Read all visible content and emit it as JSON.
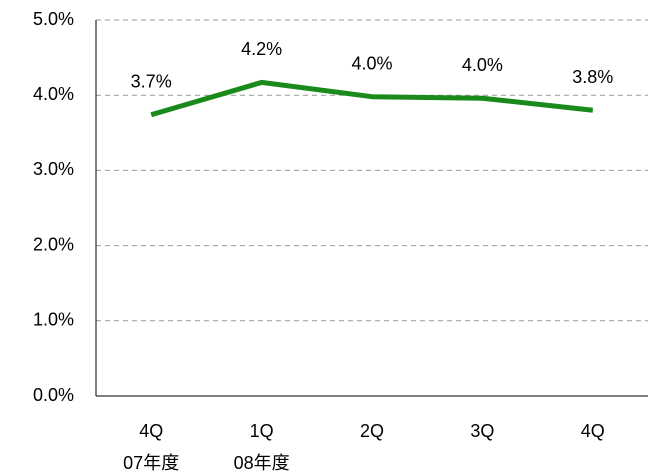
{
  "chart_data": {
    "type": "line",
    "categories": [
      "4Q",
      "1Q",
      "2Q",
      "3Q",
      "4Q"
    ],
    "category_groups": [
      "07年度",
      "08年度",
      null,
      null,
      null
    ],
    "series": [
      {
        "color": "#1a8a1a",
        "values": [
          3.74,
          4.17,
          3.98,
          3.96,
          3.8
        ],
        "value_labels": [
          "3.7%",
          "4.2%",
          "4.0%",
          "4.0%",
          "3.8%"
        ]
      }
    ],
    "ylim": [
      0,
      5
    ],
    "yticks": [
      {
        "value": 0,
        "label": "0.0%"
      },
      {
        "value": 1,
        "label": "1.0%"
      },
      {
        "value": 2,
        "label": "2.0%"
      },
      {
        "value": 3,
        "label": "3.0%"
      },
      {
        "value": 4,
        "label": "4.0%"
      },
      {
        "value": 5,
        "label": "5.0%"
      }
    ],
    "grid": true
  }
}
